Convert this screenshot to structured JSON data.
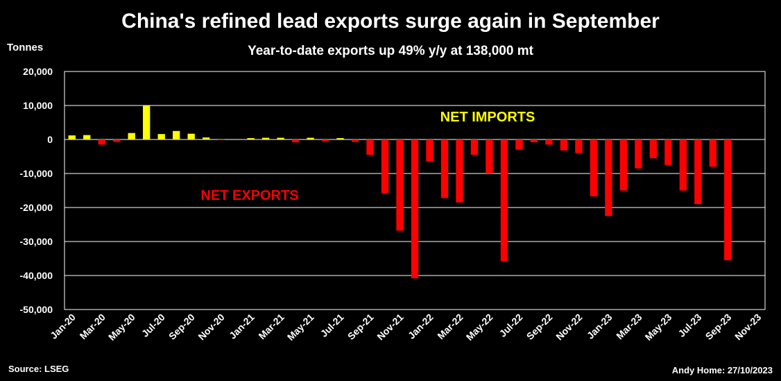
{
  "header": {
    "title": "China's refined lead exports surge again in September",
    "subtitle": "Year-to-date exports up 49% y/y at 138,000 mt",
    "unit": "Tonnes"
  },
  "footer": {
    "source": "Source: LSEG",
    "credit": "Andy Home: 27/10/2023"
  },
  "colors": {
    "positive": "#ffff00",
    "negative": "#ff0000",
    "background": "#000000",
    "grid": "#ffffff"
  },
  "chart_data": {
    "type": "bar",
    "ylim": [
      -50000,
      20000
    ],
    "yticks": [
      20000,
      10000,
      0,
      -10000,
      -20000,
      -30000,
      -40000,
      -50000
    ],
    "ytick_labels": [
      "20,000",
      "10,000",
      "0",
      "-10,000",
      "-20,000",
      "-30,000",
      "-40,000",
      "-50,000"
    ],
    "grid": true,
    "annotations": [
      {
        "text": "NET IMPORTS",
        "color": "#ffff00"
      },
      {
        "text": "NET EXPORTS",
        "color": "#ff0000"
      }
    ],
    "categories": [
      "Jan-20",
      "Feb-20",
      "Mar-20",
      "Apr-20",
      "May-20",
      "Jun-20",
      "Jul-20",
      "Aug-20",
      "Sep-20",
      "Oct-20",
      "Nov-20",
      "Dec-20",
      "Jan-21",
      "Feb-21",
      "Mar-21",
      "Apr-21",
      "May-21",
      "Jun-21",
      "Jul-21",
      "Aug-21",
      "Sep-21",
      "Oct-21",
      "Nov-21",
      "Dec-21",
      "Jan-22",
      "Feb-22",
      "Mar-22",
      "Apr-22",
      "May-22",
      "Jun-22",
      "Jul-22",
      "Aug-22",
      "Sep-22",
      "Oct-22",
      "Nov-22",
      "Dec-22",
      "Jan-23",
      "Feb-23",
      "Mar-23",
      "Apr-23",
      "May-23",
      "Jun-23",
      "Jul-23",
      "Aug-23",
      "Sep-23",
      "Oct-23",
      "Nov-23"
    ],
    "xtick_labels": [
      "Jan-20",
      "Mar-20",
      "May-20",
      "Jul-20",
      "Sep-20",
      "Nov-20",
      "Jan-21",
      "Mar-21",
      "May-21",
      "Jul-21",
      "Sep-21",
      "Nov-21",
      "Jan-22",
      "Mar-22",
      "May-22",
      "Jul-22",
      "Sep-22",
      "Nov-22",
      "Jan-23",
      "Mar-23",
      "May-23",
      "Jul-23",
      "Sep-23",
      "Nov-23"
    ],
    "values": [
      1200,
      1300,
      -1500,
      -700,
      1900,
      10000,
      1600,
      2500,
      1700,
      600,
      -100,
      0,
      400,
      500,
      500,
      -800,
      500,
      -500,
      400,
      -700,
      -4500,
      -15800,
      -26800,
      -40800,
      -6500,
      -17200,
      -18500,
      -4500,
      -10000,
      -35800,
      -3000,
      -800,
      -1500,
      -3200,
      -4000,
      -16700,
      -22500,
      -15000,
      -8500,
      -5500,
      -7500,
      -15000,
      -19000,
      -8000,
      -35500,
      0,
      0
    ]
  }
}
